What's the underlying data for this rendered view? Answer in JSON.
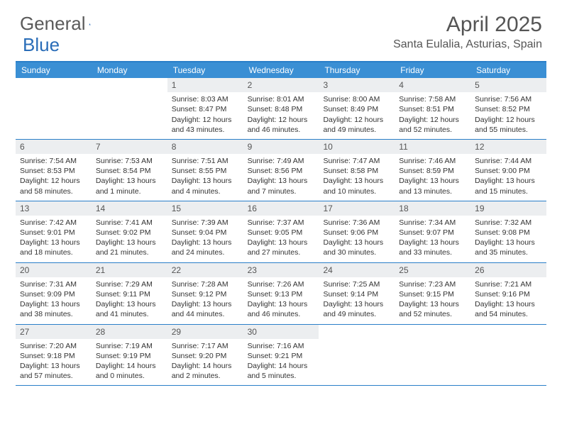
{
  "brand": {
    "part1": "General",
    "part2": "Blue"
  },
  "title": "April 2025",
  "location": "Santa Eulalia, Asturias, Spain",
  "colors": {
    "header_bar": "#3a8fd4",
    "border": "#2a7fc9",
    "daynum_bg": "#eceef0",
    "text": "#333333",
    "title_text": "#555555",
    "brand_gray": "#5a5a5a",
    "brand_blue": "#2a6db8",
    "background": "#ffffff"
  },
  "typography": {
    "title_fontsize": 30,
    "location_fontsize": 16,
    "weekday_fontsize": 12,
    "daynum_fontsize": 12,
    "body_fontsize": 10.5
  },
  "weekdays": [
    "Sunday",
    "Monday",
    "Tuesday",
    "Wednesday",
    "Thursday",
    "Friday",
    "Saturday"
  ],
  "weeks": [
    [
      {
        "n": "",
        "l1": "",
        "l2": "",
        "l3": "",
        "l4": ""
      },
      {
        "n": "",
        "l1": "",
        "l2": "",
        "l3": "",
        "l4": ""
      },
      {
        "n": "1",
        "l1": "Sunrise: 8:03 AM",
        "l2": "Sunset: 8:47 PM",
        "l3": "Daylight: 12 hours",
        "l4": "and 43 minutes."
      },
      {
        "n": "2",
        "l1": "Sunrise: 8:01 AM",
        "l2": "Sunset: 8:48 PM",
        "l3": "Daylight: 12 hours",
        "l4": "and 46 minutes."
      },
      {
        "n": "3",
        "l1": "Sunrise: 8:00 AM",
        "l2": "Sunset: 8:49 PM",
        "l3": "Daylight: 12 hours",
        "l4": "and 49 minutes."
      },
      {
        "n": "4",
        "l1": "Sunrise: 7:58 AM",
        "l2": "Sunset: 8:51 PM",
        "l3": "Daylight: 12 hours",
        "l4": "and 52 minutes."
      },
      {
        "n": "5",
        "l1": "Sunrise: 7:56 AM",
        "l2": "Sunset: 8:52 PM",
        "l3": "Daylight: 12 hours",
        "l4": "and 55 minutes."
      }
    ],
    [
      {
        "n": "6",
        "l1": "Sunrise: 7:54 AM",
        "l2": "Sunset: 8:53 PM",
        "l3": "Daylight: 12 hours",
        "l4": "and 58 minutes."
      },
      {
        "n": "7",
        "l1": "Sunrise: 7:53 AM",
        "l2": "Sunset: 8:54 PM",
        "l3": "Daylight: 13 hours",
        "l4": "and 1 minute."
      },
      {
        "n": "8",
        "l1": "Sunrise: 7:51 AM",
        "l2": "Sunset: 8:55 PM",
        "l3": "Daylight: 13 hours",
        "l4": "and 4 minutes."
      },
      {
        "n": "9",
        "l1": "Sunrise: 7:49 AM",
        "l2": "Sunset: 8:56 PM",
        "l3": "Daylight: 13 hours",
        "l4": "and 7 minutes."
      },
      {
        "n": "10",
        "l1": "Sunrise: 7:47 AM",
        "l2": "Sunset: 8:58 PM",
        "l3": "Daylight: 13 hours",
        "l4": "and 10 minutes."
      },
      {
        "n": "11",
        "l1": "Sunrise: 7:46 AM",
        "l2": "Sunset: 8:59 PM",
        "l3": "Daylight: 13 hours",
        "l4": "and 13 minutes."
      },
      {
        "n": "12",
        "l1": "Sunrise: 7:44 AM",
        "l2": "Sunset: 9:00 PM",
        "l3": "Daylight: 13 hours",
        "l4": "and 15 minutes."
      }
    ],
    [
      {
        "n": "13",
        "l1": "Sunrise: 7:42 AM",
        "l2": "Sunset: 9:01 PM",
        "l3": "Daylight: 13 hours",
        "l4": "and 18 minutes."
      },
      {
        "n": "14",
        "l1": "Sunrise: 7:41 AM",
        "l2": "Sunset: 9:02 PM",
        "l3": "Daylight: 13 hours",
        "l4": "and 21 minutes."
      },
      {
        "n": "15",
        "l1": "Sunrise: 7:39 AM",
        "l2": "Sunset: 9:04 PM",
        "l3": "Daylight: 13 hours",
        "l4": "and 24 minutes."
      },
      {
        "n": "16",
        "l1": "Sunrise: 7:37 AM",
        "l2": "Sunset: 9:05 PM",
        "l3": "Daylight: 13 hours",
        "l4": "and 27 minutes."
      },
      {
        "n": "17",
        "l1": "Sunrise: 7:36 AM",
        "l2": "Sunset: 9:06 PM",
        "l3": "Daylight: 13 hours",
        "l4": "and 30 minutes."
      },
      {
        "n": "18",
        "l1": "Sunrise: 7:34 AM",
        "l2": "Sunset: 9:07 PM",
        "l3": "Daylight: 13 hours",
        "l4": "and 33 minutes."
      },
      {
        "n": "19",
        "l1": "Sunrise: 7:32 AM",
        "l2": "Sunset: 9:08 PM",
        "l3": "Daylight: 13 hours",
        "l4": "and 35 minutes."
      }
    ],
    [
      {
        "n": "20",
        "l1": "Sunrise: 7:31 AM",
        "l2": "Sunset: 9:09 PM",
        "l3": "Daylight: 13 hours",
        "l4": "and 38 minutes."
      },
      {
        "n": "21",
        "l1": "Sunrise: 7:29 AM",
        "l2": "Sunset: 9:11 PM",
        "l3": "Daylight: 13 hours",
        "l4": "and 41 minutes."
      },
      {
        "n": "22",
        "l1": "Sunrise: 7:28 AM",
        "l2": "Sunset: 9:12 PM",
        "l3": "Daylight: 13 hours",
        "l4": "and 44 minutes."
      },
      {
        "n": "23",
        "l1": "Sunrise: 7:26 AM",
        "l2": "Sunset: 9:13 PM",
        "l3": "Daylight: 13 hours",
        "l4": "and 46 minutes."
      },
      {
        "n": "24",
        "l1": "Sunrise: 7:25 AM",
        "l2": "Sunset: 9:14 PM",
        "l3": "Daylight: 13 hours",
        "l4": "and 49 minutes."
      },
      {
        "n": "25",
        "l1": "Sunrise: 7:23 AM",
        "l2": "Sunset: 9:15 PM",
        "l3": "Daylight: 13 hours",
        "l4": "and 52 minutes."
      },
      {
        "n": "26",
        "l1": "Sunrise: 7:21 AM",
        "l2": "Sunset: 9:16 PM",
        "l3": "Daylight: 13 hours",
        "l4": "and 54 minutes."
      }
    ],
    [
      {
        "n": "27",
        "l1": "Sunrise: 7:20 AM",
        "l2": "Sunset: 9:18 PM",
        "l3": "Daylight: 13 hours",
        "l4": "and 57 minutes."
      },
      {
        "n": "28",
        "l1": "Sunrise: 7:19 AM",
        "l2": "Sunset: 9:19 PM",
        "l3": "Daylight: 14 hours",
        "l4": "and 0 minutes."
      },
      {
        "n": "29",
        "l1": "Sunrise: 7:17 AM",
        "l2": "Sunset: 9:20 PM",
        "l3": "Daylight: 14 hours",
        "l4": "and 2 minutes."
      },
      {
        "n": "30",
        "l1": "Sunrise: 7:16 AM",
        "l2": "Sunset: 9:21 PM",
        "l3": "Daylight: 14 hours",
        "l4": "and 5 minutes."
      },
      {
        "n": "",
        "l1": "",
        "l2": "",
        "l3": "",
        "l4": ""
      },
      {
        "n": "",
        "l1": "",
        "l2": "",
        "l3": "",
        "l4": ""
      },
      {
        "n": "",
        "l1": "",
        "l2": "",
        "l3": "",
        "l4": ""
      }
    ]
  ]
}
